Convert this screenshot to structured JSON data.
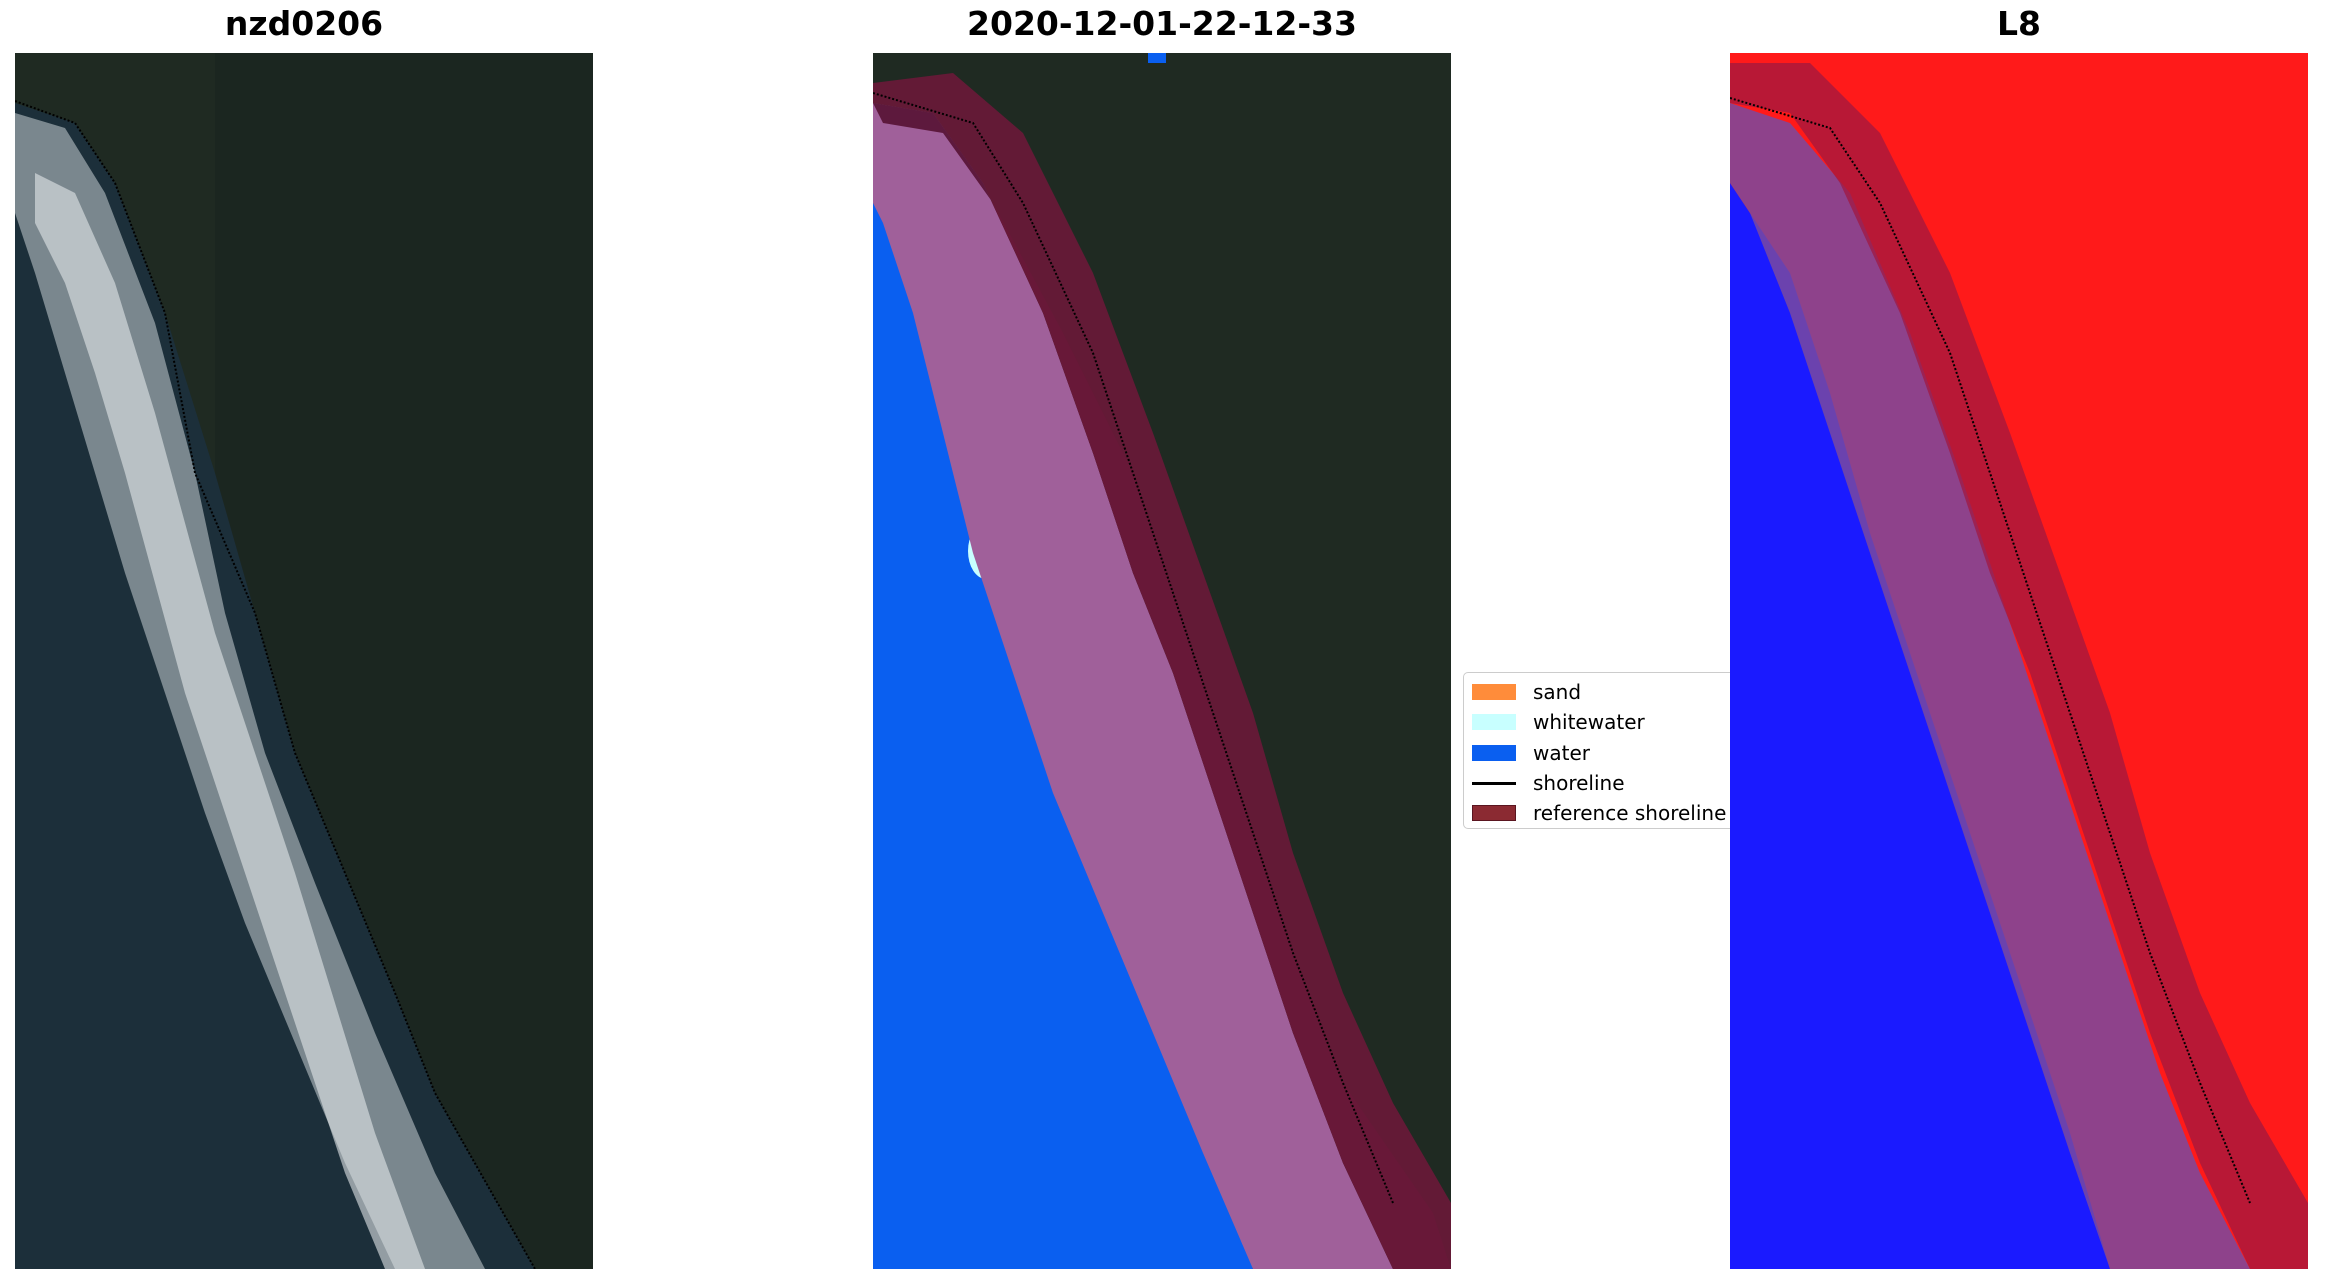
{
  "panels": {
    "rgb": {
      "title": "nzd0206"
    },
    "classified": {
      "title": "2020-12-01-22-12-33"
    },
    "index": {
      "title": "L8"
    }
  },
  "legend": {
    "items": [
      {
        "label": "sand",
        "color": "#ff8c3a"
      },
      {
        "label": "whitewater",
        "color": "#c8ffff"
      },
      {
        "label": "water",
        "color": "#0a5ff0"
      },
      {
        "label": "shoreline",
        "color": "#000000"
      },
      {
        "label": "reference shoreline",
        "color": "#8b2a32"
      }
    ]
  },
  "colors": {
    "land": "#1f2a22",
    "ocean_rgb": "#1c2f3a",
    "surf": "#d8dde0",
    "water_class": "#0a5ff0",
    "sand_overlay": "#a0609a",
    "reference_band": "#6a1838",
    "index_land": "#ff1a1a",
    "index_water": "#1a1aff"
  }
}
